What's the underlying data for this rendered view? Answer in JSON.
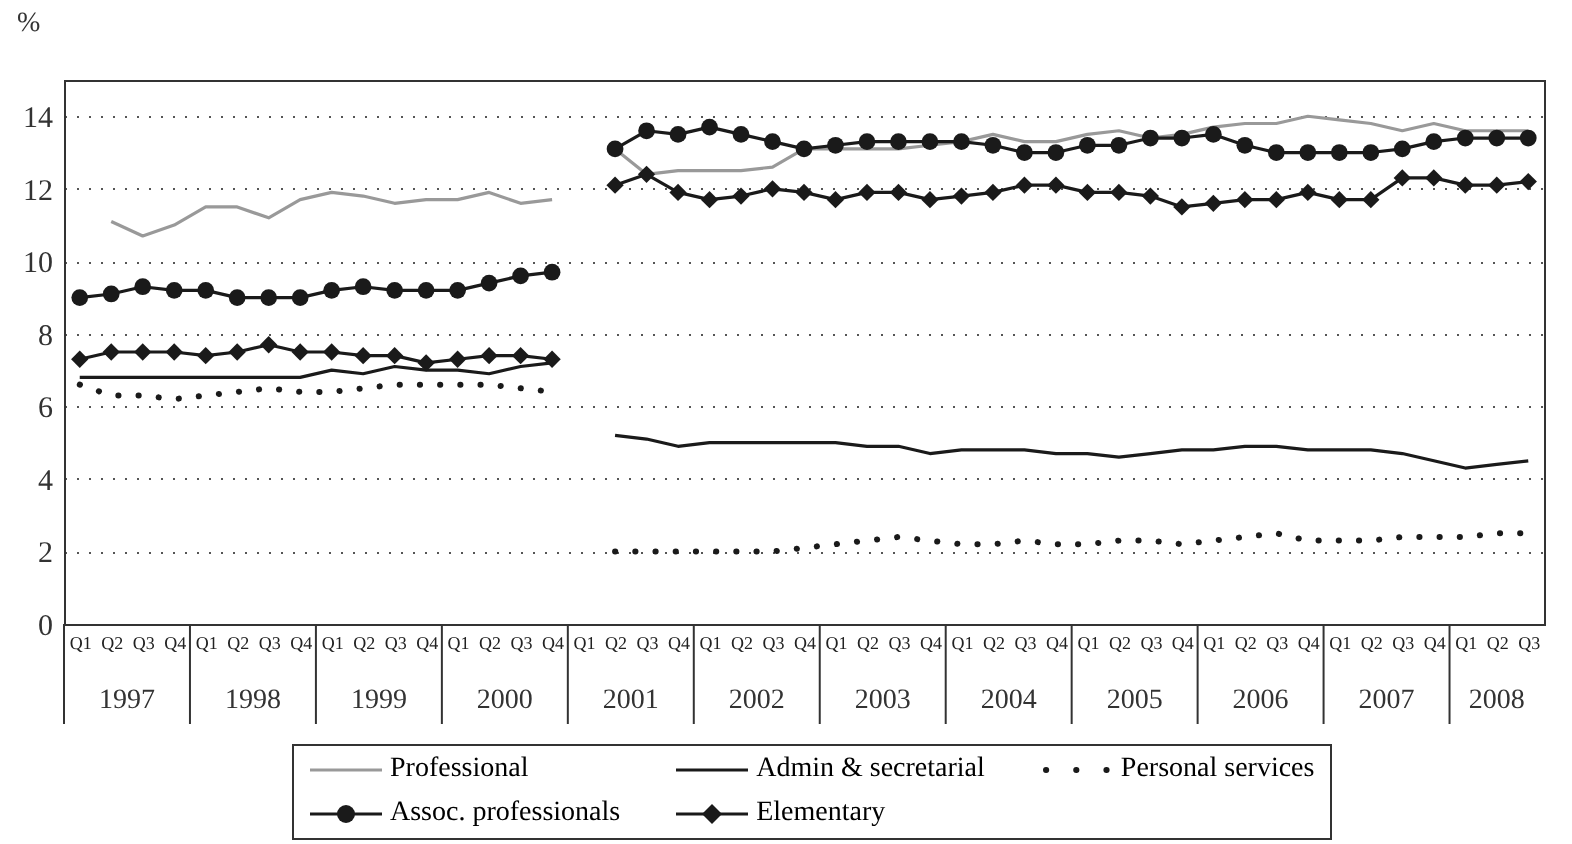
{
  "chart_data": {
    "type": "line",
    "ylabel": "%",
    "categories": [
      "Q1",
      "Q2",
      "Q3",
      "Q4",
      "Q1",
      "Q2",
      "Q3",
      "Q4",
      "Q1",
      "Q2",
      "Q3",
      "Q4",
      "Q1",
      "Q2",
      "Q3",
      "Q4",
      "Q1",
      "Q2",
      "Q3",
      "Q4",
      "Q1",
      "Q2",
      "Q3",
      "Q4",
      "Q1",
      "Q2",
      "Q3",
      "Q4",
      "Q1",
      "Q2",
      "Q3",
      "Q4",
      "Q1",
      "Q2",
      "Q3",
      "Q4",
      "Q1",
      "Q2",
      "Q3",
      "Q4",
      "Q1",
      "Q2",
      "Q3",
      "Q4",
      "Q1",
      "Q2",
      "Q3"
    ],
    "annotations": [
      "1997",
      "1998",
      "1999",
      "2000",
      "2001",
      "2002",
      "2003",
      "2004",
      "2005",
      "2006",
      "2007",
      "2008"
    ],
    "series": [
      {
        "name": "Professional",
        "color": "#999999",
        "marker": "none",
        "line_style": "solid",
        "values": [
          null,
          11.1,
          10.7,
          11.0,
          11.5,
          11.5,
          11.2,
          11.7,
          11.9,
          11.8,
          11.6,
          11.7,
          11.7,
          11.9,
          11.6,
          11.7,
          null,
          13.1,
          12.4,
          12.5,
          12.5,
          12.5,
          12.6,
          13.1,
          13.1,
          13.1,
          13.1,
          13.2,
          13.3,
          13.5,
          13.3,
          13.3,
          13.5,
          13.6,
          13.4,
          13.5,
          13.7,
          13.8,
          13.8,
          14.0,
          13.9,
          13.8,
          13.6,
          13.8,
          13.6,
          13.6,
          13.6
        ]
      },
      {
        "name": "Admin & secretarial",
        "color": "#1a1a1a",
        "marker": "none",
        "line_style": "solid",
        "values": [
          6.8,
          6.8,
          6.8,
          6.8,
          6.8,
          6.8,
          6.8,
          6.8,
          7.0,
          6.9,
          7.1,
          7.0,
          7.0,
          6.9,
          7.1,
          7.2,
          null,
          5.2,
          5.1,
          4.9,
          5.0,
          5.0,
          5.0,
          5.0,
          5.0,
          4.9,
          4.9,
          4.7,
          4.8,
          4.8,
          4.8,
          4.7,
          4.7,
          4.6,
          4.7,
          4.8,
          4.8,
          4.9,
          4.9,
          4.8,
          4.8,
          4.8,
          4.7,
          4.5,
          4.3,
          4.4,
          4.5
        ]
      },
      {
        "name": "Personal services",
        "color": "#1a1a1a",
        "marker": "none",
        "line_style": "dotted",
        "values": [
          6.6,
          6.3,
          6.3,
          6.2,
          6.3,
          6.4,
          6.5,
          6.4,
          6.4,
          6.5,
          6.6,
          6.6,
          6.6,
          6.6,
          6.5,
          6.4,
          null,
          2.0,
          2.0,
          2.0,
          2.0,
          2.0,
          2.0,
          2.1,
          2.2,
          2.3,
          2.4,
          2.3,
          2.2,
          2.2,
          2.3,
          2.2,
          2.2,
          2.3,
          2.3,
          2.2,
          2.3,
          2.4,
          2.5,
          2.3,
          2.3,
          2.3,
          2.4,
          2.4,
          2.4,
          2.5,
          2.5
        ]
      },
      {
        "name": "Assoc. professionals",
        "color": "#1a1a1a",
        "marker": "circle",
        "line_style": "solid",
        "values": [
          9.0,
          9.1,
          9.3,
          9.2,
          9.2,
          9.0,
          9.0,
          9.0,
          9.2,
          9.3,
          9.2,
          9.2,
          9.2,
          9.4,
          9.6,
          9.7,
          null,
          13.1,
          13.6,
          13.5,
          13.7,
          13.5,
          13.3,
          13.1,
          13.2,
          13.3,
          13.3,
          13.3,
          13.3,
          13.2,
          13.0,
          13.0,
          13.2,
          13.2,
          13.4,
          13.4,
          13.5,
          13.2,
          13.0,
          13.0,
          13.0,
          13.0,
          13.1,
          13.3,
          13.4,
          13.4,
          13.4
        ]
      },
      {
        "name": "Elementary",
        "color": "#1a1a1a",
        "marker": "diamond",
        "line_style": "solid",
        "values": [
          7.3,
          7.5,
          7.5,
          7.5,
          7.4,
          7.5,
          7.7,
          7.5,
          7.5,
          7.4,
          7.4,
          7.2,
          7.3,
          7.4,
          7.4,
          7.3,
          null,
          12.1,
          12.4,
          11.9,
          11.7,
          11.8,
          12.0,
          11.9,
          11.7,
          11.9,
          11.9,
          11.7,
          11.8,
          11.9,
          12.1,
          12.1,
          11.9,
          11.9,
          11.8,
          11.5,
          11.6,
          11.7,
          11.7,
          11.9,
          11.7,
          11.7,
          12.3,
          12.3,
          12.1,
          12.1,
          12.2
        ]
      }
    ],
    "ylim": [
      0,
      15
    ],
    "yticks": [
      0,
      2,
      4,
      6,
      8,
      10,
      12,
      14
    ],
    "grid": "y",
    "legend": "bottom"
  }
}
